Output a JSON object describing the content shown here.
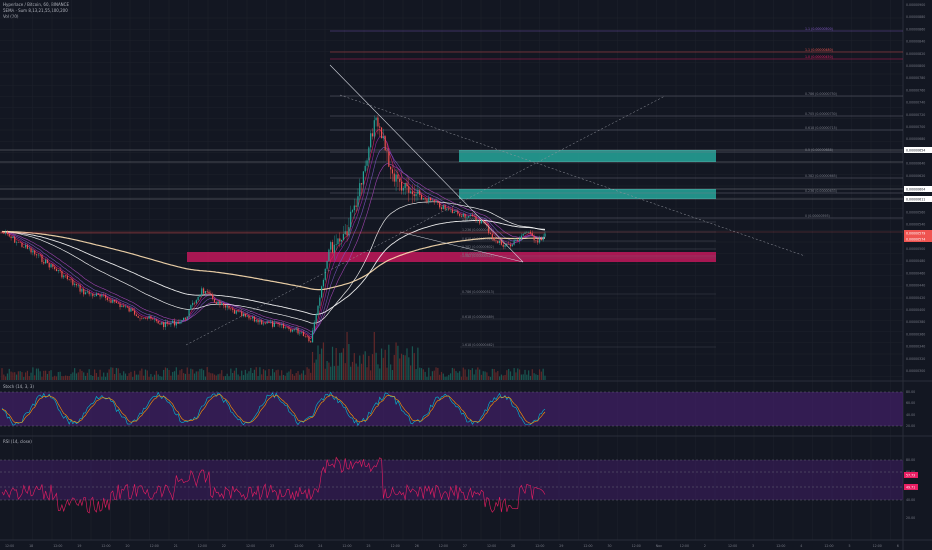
{
  "header": {
    "symbol_line": "Hyperlace / Bitcoin, 60, BINANCE",
    "ema_line": "5EMA · Sum 8,13,21,55,100,200",
    "vol_line": "Vol (20)"
  },
  "panes": {
    "stoch_title": "Stoch (14, 3, 3)",
    "rsi_title": "RSI (14, close)"
  },
  "colors": {
    "background": "#131722",
    "up": "#26a69a",
    "down": "#ef5350",
    "green_zone": "#26a69a",
    "pink_zone": "#c2185b",
    "purple_band": "#4a1f73",
    "rsi_line": "#e91e63",
    "stoch_k": "#00bcd4",
    "stoch_d": "#ff9800",
    "ema_200": "#ffe0b2",
    "ema_100": "#ffffff"
  },
  "price_axis": {
    "ticks": [
      "0.00000900",
      "0.00000880",
      "0.00000860",
      "0.00000840",
      "0.00000820",
      "0.00000800",
      "0.00000780",
      "0.00000760",
      "0.00000740",
      "0.00000720",
      "0.00000700",
      "0.00000680",
      "0.00000660",
      "0.00000640",
      "0.00000620",
      "0.00000600",
      "0.00000580",
      "0.00000560",
      "0.00000540",
      "0.00000520",
      "0.00000500",
      "0.00000480",
      "0.00000460",
      "0.00000440",
      "0.00000420",
      "0.00000400",
      "0.00000380",
      "0.00000360",
      "0.00000340",
      "0.00000320",
      "0.00000300"
    ],
    "badges": [
      {
        "label": "0.00000654",
        "color": "#ffffff"
      },
      {
        "label": "0.00000611",
        "color": "#ffffff"
      },
      {
        "label": "0.00000604",
        "color": "#ffffff"
      },
      {
        "label": "0.00000579",
        "color": "#ef5350"
      },
      {
        "label": "0.00000574",
        "color": "#ef5350"
      }
    ]
  },
  "stoch_axis": {
    "ticks": [
      "80.00",
      "60.00",
      "40.00",
      "20.00"
    ]
  },
  "rsi_axis": {
    "ticks": [
      "80.00",
      "60.00",
      "40.00",
      "20.00"
    ],
    "badges": [
      "57.73",
      "49.71"
    ]
  },
  "time_axis": {
    "labels": [
      "12:00",
      "18",
      "12:00",
      "19",
      "12:00",
      "20",
      "12:00",
      "21",
      "12:00",
      "22",
      "12:00",
      "23",
      "12:00",
      "24",
      "12:00",
      "25",
      "12:00",
      "26",
      "12:00",
      "27",
      "12:00",
      "28",
      "12:00",
      "29",
      "12:00",
      "30",
      "12:00",
      "Nov",
      "12:00",
      "2",
      "12:00",
      "3",
      "12:00",
      "4",
      "12:00",
      "5",
      "12:00",
      "6"
    ]
  },
  "fib_upper": [
    {
      "label": "1.1 (0.00000500)",
      "color": "#7e57c2"
    },
    {
      "label": "1.1 (0.00000480)",
      "color": "#ef5350"
    },
    {
      "label": "1.0 (0.00000450)",
      "color": "#e91e63"
    },
    {
      "label": "0.786 (0.00000750)",
      "color": "#787b86"
    },
    {
      "label": "0.705 (0.00000730)",
      "color": "#787b86"
    },
    {
      "label": "0.618 (0.00000715)",
      "color": "#787b86"
    },
    {
      "label": "0.5 (0.00000688)",
      "color": "#787b86"
    },
    {
      "label": "0.382 (0.00000665)",
      "color": "#787b86"
    },
    {
      "label": "0.236 (0.00000633)",
      "color": "#787b86"
    },
    {
      "label": "0 (0.00000593)",
      "color": "#787b86"
    }
  ],
  "fib_mid": [
    {
      "label": "0 (0.00000579)",
      "color": "#787b86"
    },
    {
      "label": "0.382 (0.00000602)",
      "color": "#787b86"
    },
    {
      "label": "0.618 (0.00000618)",
      "color": "#787b86"
    },
    {
      "label": "1 (0.00000649)",
      "color": "#787b86"
    }
  ],
  "fib_lower": [
    {
      "label": "0.786 (0.00000513)",
      "color": "#787b86"
    },
    {
      "label": "0.618 (0.00000489)",
      "color": "#787b86"
    },
    {
      "label": "1.618 (0.00000462)",
      "color": "#787b86"
    },
    {
      "label": "1.236 (0.00000451)",
      "color": "#787b86"
    },
    {
      "label": "1.382 (0.00000421)",
      "color": "#787b86"
    }
  ]
}
